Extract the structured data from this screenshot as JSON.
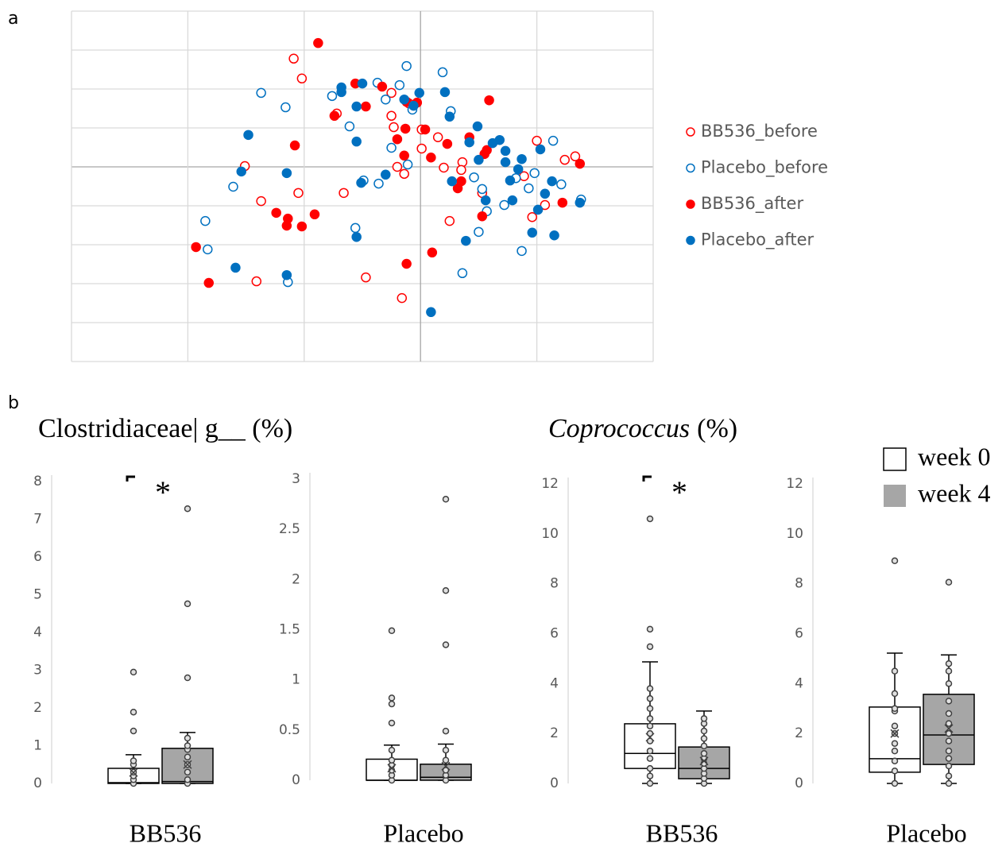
{
  "panel_labels": [
    "a",
    "b"
  ],
  "chart_data": [
    {
      "type": "scatter",
      "xlim": [
        -3,
        2
      ],
      "xticks": [
        -3,
        -2,
        -1,
        0,
        1,
        2
      ],
      "ylim": [
        -5,
        4
      ],
      "yticks": [
        -5,
        -4,
        -3,
        -2,
        -1,
        0,
        1,
        2,
        3,
        4
      ],
      "grid": true,
      "legend": "right",
      "series": [
        {
          "name": "BB536_before",
          "color": "#ff0000",
          "filled": false,
          "x": [
            -1.09,
            -1.02,
            -1.51,
            -1.37,
            -1.05,
            -0.66,
            -0.72,
            -0.25,
            -0.23,
            -0.25,
            -0.2,
            -0.14,
            0.01,
            0.01,
            0.15,
            0.2,
            0.36,
            0.35,
            0.25,
            -0.16,
            -0.47,
            -1.41,
            0.53,
            0.89,
            0.96,
            1.0,
            1.24,
            1.33,
            -0.1,
            1.07
          ],
          "y": [
            2.78,
            2.27,
            0.02,
            -0.88,
            -0.67,
            -0.67,
            1.37,
            1.31,
            1.02,
            1.9,
            0,
            -0.18,
            0.96,
            0.47,
            0.76,
            -0.02,
            0.12,
            -0.08,
            -1.39,
            -3.37,
            -2.84,
            -2.94,
            -0.67,
            -0.24,
            -1.29,
            0.67,
            0.18,
            0.27,
            1.63,
            -0.98
          ]
        },
        {
          "name": "Placebo_before",
          "color": "#0070c0",
          "filled": false,
          "x": [
            -1.37,
            -1.16,
            -1.61,
            -1.85,
            -1.83,
            -1.14,
            -0.56,
            -0.76,
            -0.61,
            -0.49,
            -0.36,
            -0.37,
            -0.3,
            -0.25,
            -0.18,
            -0.12,
            -0.11,
            -0.07,
            0.19,
            0.26,
            0.46,
            0.53,
            0.57,
            0.5,
            0.36,
            0.72,
            0.87,
            0.93,
            0.98,
            1.14,
            1.21,
            1.38,
            0.82
          ],
          "y": [
            1.9,
            1.53,
            -0.51,
            -1.39,
            -2.12,
            -2.96,
            -1.57,
            1.82,
            1.04,
            -0.35,
            -0.43,
            2.16,
            1.73,
            0.49,
            2.1,
            2.59,
            0.06,
            1.47,
            2.43,
            1.43,
            -0.27,
            -0.57,
            -1.14,
            -1.67,
            -2.73,
            -0.98,
            -2.16,
            -0.55,
            -0.16,
            0.67,
            -0.45,
            -0.84,
            -0.29
          ]
        },
        {
          "name": "BB536_after",
          "color": "#ff0000",
          "filled": true,
          "x": [
            -0.88,
            -1.08,
            -1.24,
            -1.15,
            -1.14,
            -1.02,
            -0.91,
            -1.93,
            -1.82,
            -0.74,
            -0.56,
            -0.47,
            -0.33,
            -0.2,
            -0.14,
            -0.13,
            -0.12,
            -0.03,
            0.04,
            0.09,
            0.23,
            0.35,
            0.32,
            0.42,
            0.55,
            0.57,
            0.53,
            0.59,
            -0.12,
            0.1,
            1.22,
            1.37
          ],
          "y": [
            3.18,
            0.55,
            -1.18,
            -1.51,
            -1.33,
            -1.53,
            -1.22,
            -2.06,
            -2.98,
            1.31,
            2.14,
            1.55,
            2.06,
            0.71,
            0.29,
            0.98,
            1.67,
            1.65,
            0.96,
            0.24,
            0.59,
            -0.37,
            -0.55,
            0.76,
            0.33,
            0.43,
            -1.27,
            1.71,
            -2.49,
            -2.2,
            -0.92,
            0.08
          ]
        },
        {
          "name": "Placebo_after",
          "color": "#0070c0",
          "filled": true,
          "x": [
            -1.48,
            -1.54,
            -1.15,
            -1.59,
            -1.15,
            -0.55,
            -0.68,
            -0.68,
            -0.55,
            -0.55,
            -0.51,
            -0.5,
            -0.3,
            -0.14,
            -0.06,
            -0.01,
            0.21,
            0.25,
            0.27,
            0.49,
            0.42,
            0.5,
            0.56,
            0.39,
            0.62,
            0.68,
            0.73,
            0.73,
            0.79,
            0.77,
            0.84,
            0.87,
            1.03,
            1.13,
            1.07,
            1.01,
            0.96,
            1.15,
            1.37,
            0.09
          ],
          "y": [
            0.82,
            -0.12,
            -0.16,
            -2.59,
            -2.78,
            -1.8,
            2.04,
            1.92,
            1.55,
            0.65,
            -0.41,
            2.14,
            -0.2,
            1.73,
            1.57,
            1.9,
            1.92,
            1.29,
            -0.37,
            1.04,
            0.63,
            0.18,
            -0.86,
            -1.9,
            0.61,
            0.69,
            0.41,
            0.12,
            -0.86,
            -0.35,
            -0.06,
            0.2,
            0.45,
            -0.37,
            -0.69,
            -1.1,
            -1.69,
            -1.76,
            -0.92,
            -3.73
          ]
        }
      ]
    },
    {
      "type": "box",
      "title": "Clostridiaceae| g__ (%)",
      "xlabel": "BB536",
      "annotation": "*",
      "ylim": [
        0,
        8
      ],
      "yticks": [
        0,
        1,
        2,
        3,
        4,
        5,
        6,
        7,
        8
      ],
      "series": [
        {
          "name": "week 0",
          "color": "#ffffff",
          "min": 0,
          "q1": 0,
          "median": 0.02,
          "q3": 0.4,
          "max": 0.76,
          "mean": 0.29,
          "points": [
            0,
            0.1,
            0.2,
            0.3,
            0.5,
            0.6,
            1.39,
            1.89,
            2.95
          ]
        },
        {
          "name": "week 4",
          "color": "#a6a6a6",
          "min": 0,
          "q1": 0,
          "median": 0.05,
          "q3": 0.93,
          "max": 1.35,
          "mean": 0.5,
          "points": [
            0,
            0.1,
            0.3,
            0.5,
            0.7,
            0.9,
            1.0,
            1.2,
            2.8,
            4.76,
            7.28
          ]
        }
      ]
    },
    {
      "type": "box",
      "xlabel": "Placebo",
      "ylim": [
        0,
        3
      ],
      "yticks": [
        0,
        0.5,
        1,
        1.5,
        2,
        2.5,
        3
      ],
      "series": [
        {
          "name": "week 0",
          "color": "#ffffff",
          "min": 0,
          "q1": 0,
          "median": 0.0,
          "q3": 0.21,
          "max": 0.35,
          "mean": 0.12,
          "points": [
            0,
            0.05,
            0.1,
            0.15,
            0.2,
            0.3,
            0.57,
            0.76,
            0.82,
            1.49
          ]
        },
        {
          "name": "week 4",
          "color": "#a6a6a6",
          "min": 0,
          "q1": 0,
          "median": 0.03,
          "q3": 0.16,
          "max": 0.36,
          "mean": 0.14,
          "points": [
            0,
            0.05,
            0.1,
            0.2,
            0.3,
            0.49,
            1.35,
            1.89,
            2.8
          ]
        }
      ]
    },
    {
      "type": "box",
      "title_italic": "Coprococcus",
      "title": "(%)",
      "xlabel": "BB536",
      "annotation": "*",
      "ylim": [
        0,
        12
      ],
      "yticks": [
        0,
        2,
        4,
        6,
        8,
        10,
        12
      ],
      "series": [
        {
          "name": "week 0",
          "color": "#ffffff",
          "min": 0,
          "q1": 0.6,
          "median": 1.2,
          "q3": 2.39,
          "max": 4.87,
          "mean": 1.85,
          "points": [
            0,
            0.3,
            0.6,
            1.0,
            1.3,
            1.7,
            2.0,
            2.3,
            2.6,
            3.0,
            3.4,
            3.8,
            5.48,
            6.18,
            10.6
          ]
        },
        {
          "name": "week 4",
          "color": "#a6a6a6",
          "min": 0,
          "q1": 0.19,
          "median": 0.6,
          "q3": 1.46,
          "max": 2.9,
          "mean": 0.9,
          "points": [
            0,
            0.2,
            0.4,
            0.6,
            0.8,
            1.0,
            1.2,
            1.5,
            1.8,
            2.1,
            2.4,
            2.6
          ]
        }
      ]
    },
    {
      "type": "box",
      "xlabel": "Placebo",
      "ylim": [
        0,
        12
      ],
      "yticks": [
        0,
        2,
        4,
        6,
        8,
        10,
        12
      ],
      "series": [
        {
          "name": "week 0",
          "color": "#ffffff",
          "min": 0,
          "q1": 0.45,
          "median": 0.99,
          "q3": 3.06,
          "max": 5.22,
          "mean": 2.0,
          "points": [
            0,
            0.5,
            0.9,
            1.3,
            1.6,
            2.0,
            2.3,
            2.9,
            3.0,
            3.6,
            4.5,
            8.92
          ]
        },
        {
          "name": "week 4",
          "color": "#a6a6a6",
          "min": 0,
          "q1": 0.76,
          "median": 1.94,
          "q3": 3.57,
          "max": 5.15,
          "mean": 2.2,
          "points": [
            0,
            0.3,
            0.7,
            1.0,
            1.3,
            1.7,
            2.0,
            2.4,
            2.8,
            3.3,
            4.0,
            4.5,
            4.8,
            8.06
          ]
        }
      ]
    }
  ]
}
